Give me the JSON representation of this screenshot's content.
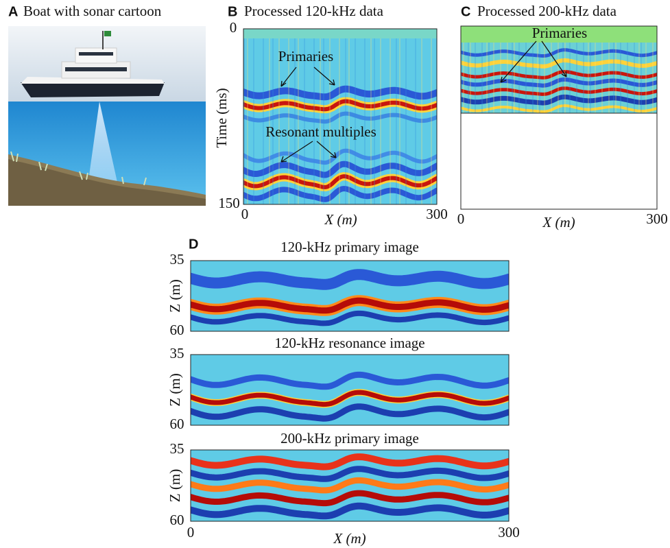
{
  "panel_a": {
    "label": "A",
    "title": "Boat with sonar cartoon"
  },
  "panel_b": {
    "label": "B",
    "title": "Processed 120-kHz data",
    "y_label": "Time (ms)",
    "y_ticks": [
      "0",
      "150"
    ],
    "x_ticks": [
      "0",
      "300"
    ],
    "x_label": "X (m)",
    "annotations": [
      "Primaries",
      "Resonant multiples"
    ]
  },
  "panel_c": {
    "label": "C",
    "title": "Processed 200-kHz data",
    "x_ticks": [
      "0",
      "300"
    ],
    "x_label": "X (m)",
    "annotations": [
      "Primaries"
    ]
  },
  "panel_d": {
    "label": "D",
    "y_label": "Z (m)",
    "y_ticks": [
      "35",
      "60"
    ],
    "x_ticks": [
      "0",
      "300"
    ],
    "x_label": "X (m)",
    "subpanels": [
      {
        "title": "120-kHz primary image"
      },
      {
        "title": "120-kHz resonance image"
      },
      {
        "title": "200-kHz primary image"
      }
    ]
  }
}
